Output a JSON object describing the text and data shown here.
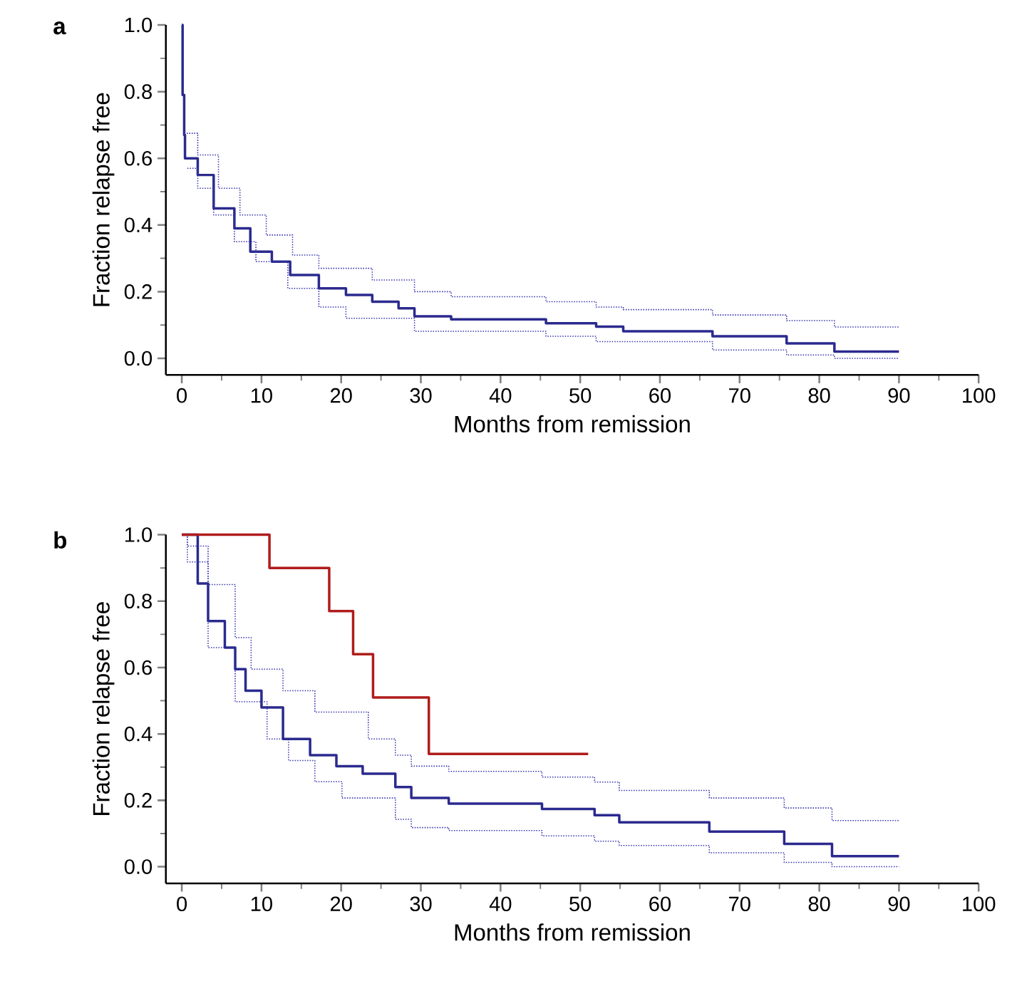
{
  "chart_data": [
    {
      "type": "step",
      "title": "a",
      "xlabel": "Months from remission",
      "ylabel": "Fraction relapse free",
      "xlim": [
        -2,
        100
      ],
      "ylim": [
        -0.05,
        1.0
      ],
      "xticks": [
        0,
        10,
        20,
        30,
        40,
        50,
        60,
        70,
        80,
        90,
        100
      ],
      "yticks": [
        {
          "value": 0,
          "label": "0.0"
        },
        {
          "value": 0.2,
          "label": "0.2"
        },
        {
          "value": 0.4,
          "label": "0.4"
        },
        {
          "value": 0.6,
          "label": "0.6"
        },
        {
          "value": 0.8,
          "label": "0.8"
        },
        {
          "value": 1,
          "label": "1.0"
        }
      ],
      "series": [
        {
          "color": "#2b2a8e",
          "line_style": "solid",
          "x": [
            0,
            0.1,
            0.3,
            0.4,
            2.0,
            4.0,
            6.6,
            8.6,
            11.3,
            13.6,
            17.2,
            20.6,
            23.9,
            27.2,
            29.2,
            33.8,
            45.7,
            52.0,
            55.4,
            66.6,
            75.9,
            81.9,
            90
          ],
          "values": [
            1.0,
            0.79,
            0.67,
            0.6,
            0.55,
            0.45,
            0.39,
            0.32,
            0.29,
            0.25,
            0.21,
            0.19,
            0.17,
            0.15,
            0.126,
            0.117,
            0.105,
            0.095,
            0.081,
            0.066,
            0.045,
            0.02,
            0.02
          ]
        },
        {
          "color": "#3a39b0",
          "line_style": "dotted",
          "x": [
            0.3,
            2.0,
            4.6,
            7.3,
            10.6,
            13.9,
            17.2,
            23.9,
            29.2,
            33.8,
            45.7,
            52.0,
            55.4,
            66.6,
            75.9,
            81.9,
            90
          ],
          "values": [
            0.675,
            0.61,
            0.51,
            0.43,
            0.37,
            0.31,
            0.27,
            0.235,
            0.2,
            0.185,
            0.17,
            0.154,
            0.146,
            0.13,
            0.113,
            0.094,
            0.094
          ]
        },
        {
          "color": "#3a39b0",
          "line_style": "dotted",
          "x": [
            0.7,
            2.0,
            4.0,
            6.6,
            9.3,
            13.3,
            17.2,
            20.6,
            29.2,
            45.7,
            52.0,
            66.6,
            75.9,
            81.9,
            90
          ],
          "values": [
            0.57,
            0.51,
            0.43,
            0.35,
            0.29,
            0.21,
            0.154,
            0.12,
            0.081,
            0.066,
            0.05,
            0.025,
            0.01,
            0.0,
            0.0
          ]
        }
      ]
    },
    {
      "type": "step",
      "title": "b",
      "xlabel": "Months from remission",
      "ylabel": "Fraction relapse free",
      "xlim": [
        -2,
        100
      ],
      "ylim": [
        -0.05,
        1.0
      ],
      "xticks": [
        0,
        10,
        20,
        30,
        40,
        50,
        60,
        70,
        80,
        90,
        100
      ],
      "yticks": [
        {
          "value": 0,
          "label": "0.0"
        },
        {
          "value": 0.2,
          "label": "0.2"
        },
        {
          "value": 0.4,
          "label": "0.4"
        },
        {
          "value": 0.6,
          "label": "0.6"
        },
        {
          "value": 0.8,
          "label": "0.8"
        },
        {
          "value": 1,
          "label": "1.0"
        }
      ],
      "series": [
        {
          "color": "#3a39b0",
          "line_style": "dotted",
          "x": [
            0,
            0.7,
            3.3,
            6.7,
            8.7,
            12.7,
            16.7,
            23.4,
            26.8,
            28.8,
            33.5,
            45.2,
            51.8,
            54.9,
            66.2,
            75.6,
            81.6,
            90
          ],
          "values": [
            1.0,
            0.966,
            0.85,
            0.69,
            0.595,
            0.53,
            0.466,
            0.385,
            0.336,
            0.303,
            0.287,
            0.27,
            0.255,
            0.23,
            0.207,
            0.177,
            0.139,
            0.139
          ]
        },
        {
          "color": "#3a39b0",
          "line_style": "dotted",
          "x": [
            0,
            0.7,
            3.3,
            6.7,
            10.7,
            13.4,
            16.7,
            20.1,
            26.8,
            28.8,
            33.5,
            45.2,
            51.8,
            54.9,
            66.2,
            75.6,
            81.6,
            90
          ],
          "values": [
            1.0,
            0.918,
            0.66,
            0.497,
            0.385,
            0.32,
            0.256,
            0.207,
            0.143,
            0.118,
            0.109,
            0.093,
            0.077,
            0.064,
            0.042,
            0.013,
            0.0,
            0.0
          ]
        },
        {
          "color": "#2b2a8e",
          "line_style": "solid",
          "x": [
            0,
            2.0,
            3.3,
            5.4,
            6.7,
            8.0,
            10.0,
            12.7,
            16.1,
            19.4,
            22.7,
            26.8,
            28.8,
            33.5,
            45.2,
            51.8,
            54.9,
            66.2,
            75.6,
            81.6,
            90
          ],
          "values": [
            1.0,
            0.853,
            0.74,
            0.66,
            0.595,
            0.53,
            0.48,
            0.385,
            0.336,
            0.303,
            0.28,
            0.24,
            0.207,
            0.19,
            0.174,
            0.155,
            0.134,
            0.106,
            0.069,
            0.032,
            0.032
          ]
        },
        {
          "color": "#b01c1c",
          "line_style": "solid",
          "x": [
            0,
            11,
            18.5,
            21.5,
            24,
            31,
            51
          ],
          "values": [
            1.0,
            0.9,
            0.77,
            0.64,
            0.51,
            0.34,
            0.34
          ]
        }
      ]
    }
  ]
}
